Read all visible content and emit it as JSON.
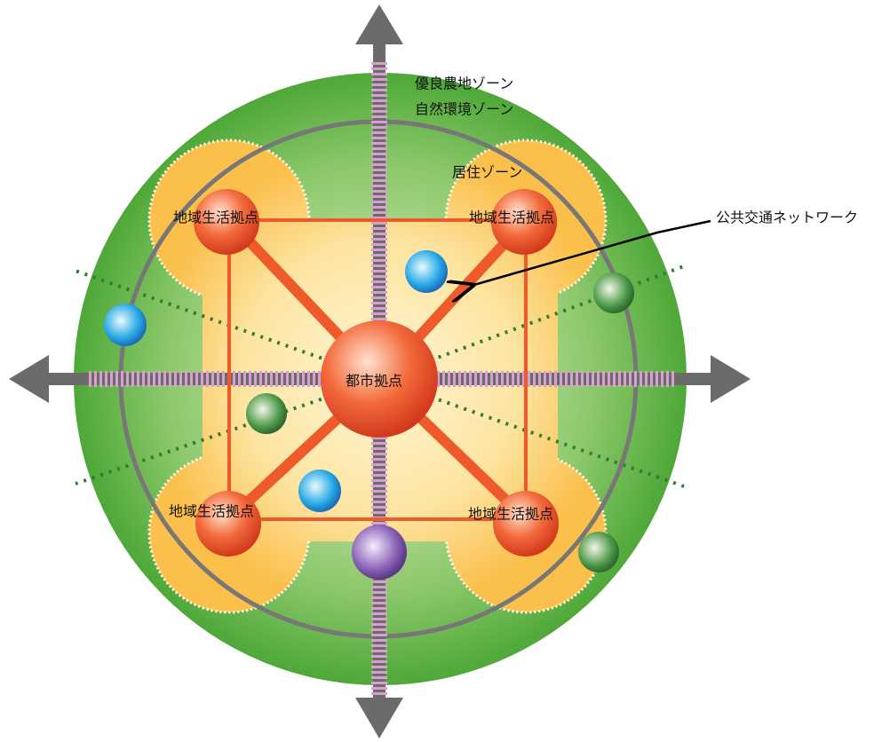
{
  "zones": {
    "agricultural": "優良農地ゾーン",
    "natural": "自然環境ゾーン",
    "residential": "居住ゾーン"
  },
  "nodes": {
    "city_center": "都市拠点",
    "local_centers": [
      "地域生活拠点",
      "地域生活拠点",
      "地域生活拠点",
      "地域生活拠点"
    ]
  },
  "callout": "公共交通ネットワーク"
}
